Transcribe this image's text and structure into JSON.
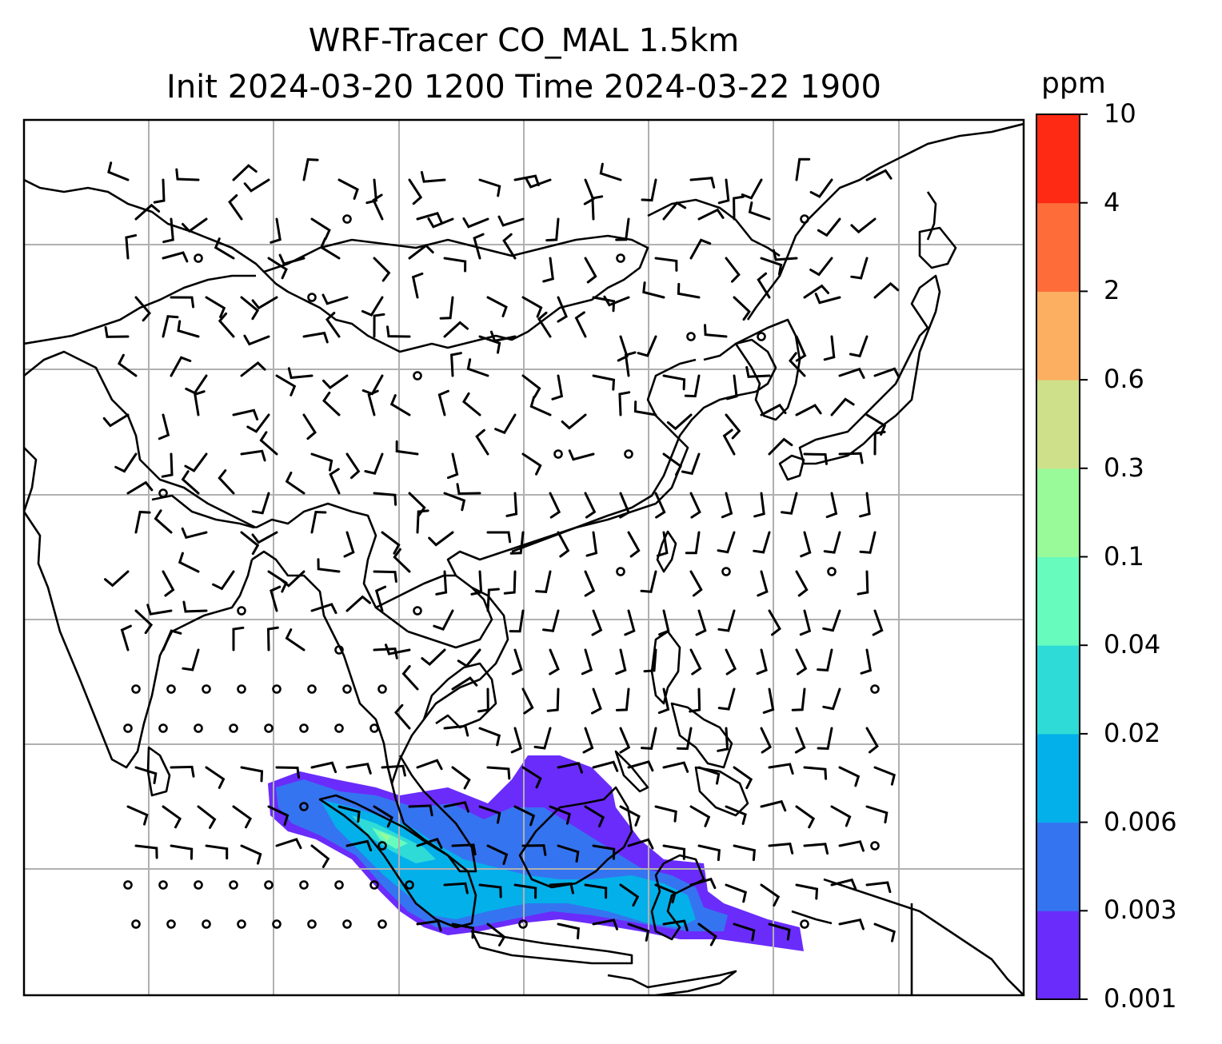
{
  "title": {
    "line1": "WRF-Tracer CO_MAL 1.5km",
    "line2": "Init 2024-03-20 1200 Time 2024-03-22 1900"
  },
  "colorbar": {
    "unit": "ppm",
    "levels": [
      "0.001",
      "0.003",
      "0.006",
      "0.02",
      "0.04",
      "0.1",
      "0.3",
      "0.6",
      "2",
      "4",
      "10"
    ],
    "colors": [
      "#6a2cfb",
      "#3574f0",
      "#04b0ea",
      "#2fdbd6",
      "#67fbbd",
      "#99fa99",
      "#cee18a",
      "#fdaf61",
      "#fd6c39",
      "#fe2a14"
    ]
  },
  "colors": {
    "grid": "#b0b0b0",
    "coast": "#000000",
    "barb": "#000000"
  },
  "layers": [
    "coastlines",
    "country-borders",
    "gridlines",
    "wind-barbs",
    "tracer-concentration"
  ]
}
